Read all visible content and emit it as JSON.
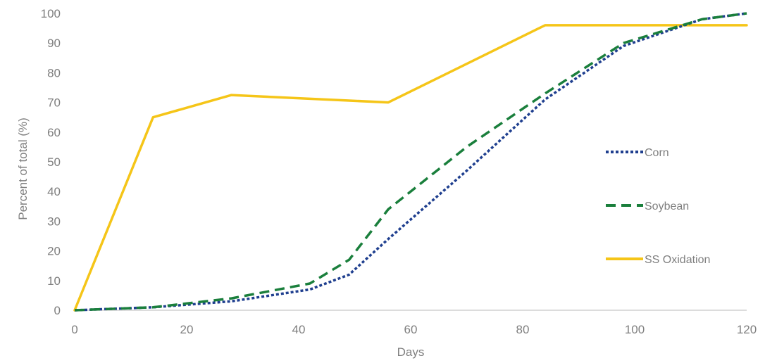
{
  "chart_data": {
    "type": "line",
    "title": "",
    "xlabel": "Days",
    "ylabel": "Percent of total (%)",
    "xlim": [
      0,
      120
    ],
    "ylim": [
      0,
      100
    ],
    "xticks": [
      0,
      20,
      40,
      60,
      80,
      100,
      120
    ],
    "yticks": [
      0,
      10,
      20,
      30,
      40,
      50,
      60,
      70,
      80,
      90,
      100
    ],
    "grid": false,
    "legend_position": "right",
    "series": [
      {
        "name": "Corn",
        "color": "#1f3f8f",
        "style": "dotted",
        "x": [
          0,
          14,
          28,
          42,
          49,
          56,
          70,
          84,
          98,
          112,
          120
        ],
        "y": [
          0,
          1,
          3,
          7,
          12,
          24,
          47,
          71,
          89,
          98,
          100
        ]
      },
      {
        "name": "Soybean",
        "color": "#1a7f3c",
        "style": "dashed",
        "x": [
          0,
          14,
          28,
          42,
          49,
          56,
          70,
          84,
          98,
          112,
          120
        ],
        "y": [
          0,
          1,
          4,
          9,
          17,
          34,
          55,
          73,
          90,
          98,
          100
        ]
      },
      {
        "name": "SS Oxidation",
        "color": "#f5c518",
        "style": "solid",
        "x": [
          0,
          14,
          28,
          56,
          84,
          120
        ],
        "y": [
          0,
          65,
          72.5,
          70,
          96,
          96
        ]
      }
    ]
  }
}
